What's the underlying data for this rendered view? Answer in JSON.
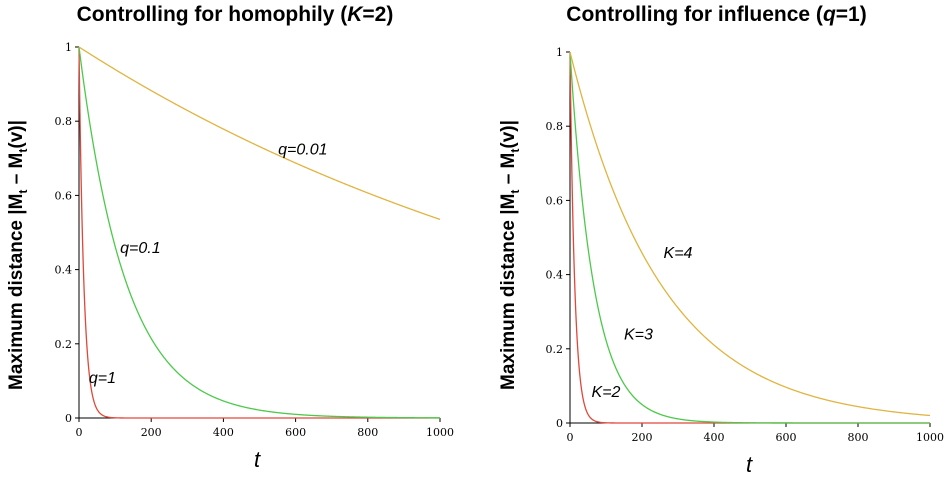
{
  "chart_data": [
    {
      "type": "line",
      "title_parts": [
        "Controlling for homophily (",
        "K",
        "=2)"
      ],
      "ylabel_parts": [
        "Maximum distance  |M",
        "t",
        " – M",
        "t",
        "(v)|"
      ],
      "xlabel": "t",
      "xlim": [
        0,
        1000
      ],
      "ylim": [
        0,
        1
      ],
      "xticks": [
        "0",
        "200",
        "400",
        "600",
        "800",
        "1000"
      ],
      "yticks": [
        "0",
        "0.2",
        "0.4",
        "0.6",
        "0.8",
        "1"
      ],
      "series": [
        {
          "name": "q=1",
          "color": "#e0473a",
          "decay_rate": 0.075,
          "points": [
            [
              0,
              1
            ],
            [
              10,
              0.47
            ],
            [
              20,
              0.22
            ],
            [
              40,
              0.05
            ],
            [
              60,
              0.011
            ],
            [
              80,
              0.0025
            ],
            [
              100,
              0.0006
            ],
            [
              1000,
              0
            ]
          ]
        },
        {
          "name": "q=0.1",
          "color": "#4cc94a",
          "decay_rate": 0.0077,
          "points": [
            [
              0,
              1
            ],
            [
              100,
              0.46
            ],
            [
              200,
              0.21
            ],
            [
              300,
              0.1
            ],
            [
              400,
              0.046
            ],
            [
              600,
              0.01
            ],
            [
              800,
              0.002
            ],
            [
              1000,
              0.0005
            ]
          ]
        },
        {
          "name": "q=0.01",
          "color": "#e0b440",
          "decay_rate": 0.000625,
          "points": [
            [
              0,
              1
            ],
            [
              200,
              0.88
            ],
            [
              400,
              0.78
            ],
            [
              600,
              0.69
            ],
            [
              800,
              0.61
            ],
            [
              1000,
              0.535
            ]
          ]
        }
      ]
    },
    {
      "type": "line",
      "title_parts": [
        "Controlling for influence (",
        "q",
        "=1)"
      ],
      "ylabel_parts": [
        "Maximum distance  |M",
        "t",
        " – M",
        "t",
        "(v)|"
      ],
      "xlabel": "t",
      "xlim": [
        0,
        1000
      ],
      "ylim": [
        0,
        1
      ],
      "xticks": [
        "0",
        "200",
        "400",
        "600",
        "800",
        "1000"
      ],
      "yticks": [
        "0",
        "0.2",
        "0.4",
        "0.6",
        "0.8",
        "1"
      ],
      "series": [
        {
          "name": "K=2",
          "color": "#e0473a",
          "decay_rate": 0.075,
          "points": [
            [
              0,
              1
            ],
            [
              20,
              0.22
            ],
            [
              40,
              0.05
            ],
            [
              60,
              0.011
            ],
            [
              100,
              0.0006
            ],
            [
              1000,
              0
            ]
          ]
        },
        {
          "name": "K=3",
          "color": "#4cc94a",
          "decay_rate": 0.015,
          "points": [
            [
              0,
              1
            ],
            [
              100,
              0.22
            ],
            [
              200,
              0.05
            ],
            [
              300,
              0.011
            ],
            [
              500,
              0.0006
            ],
            [
              1000,
              0
            ]
          ]
        },
        {
          "name": "K=4",
          "color": "#e0b440",
          "decay_rate": 0.0039,
          "points": [
            [
              0,
              1
            ],
            [
              200,
              0.46
            ],
            [
              400,
              0.21
            ],
            [
              600,
              0.096
            ],
            [
              800,
              0.044
            ],
            [
              1000,
              0.02
            ]
          ]
        }
      ]
    }
  ]
}
